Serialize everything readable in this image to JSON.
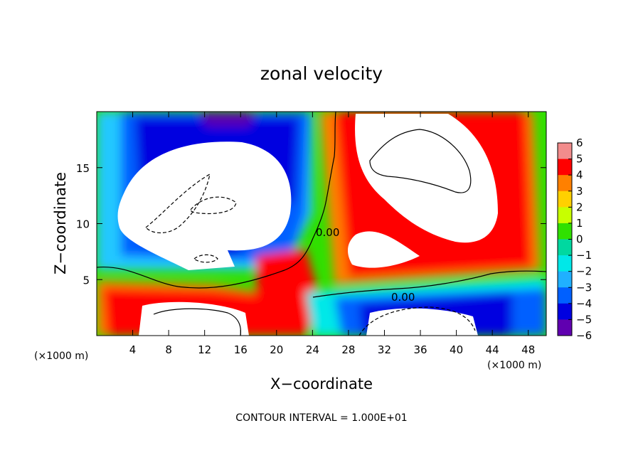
{
  "chart_data": {
    "type": "heatmap",
    "title": "zonal velocity",
    "xlabel": "X−coordinate",
    "ylabel": "Z−coordinate",
    "x_unit_left": "(×1000 m)",
    "x_unit_right": "(×1000 m)",
    "xlim": [
      0,
      50
    ],
    "ylim": [
      0,
      20
    ],
    "x_ticks": [
      4,
      8,
      12,
      16,
      20,
      24,
      28,
      32,
      36,
      40,
      44,
      48
    ],
    "x_tick_labels": [
      "4",
      "8",
      "12",
      "16",
      "20",
      "24",
      "28",
      "32",
      "36",
      "40",
      "44",
      "48"
    ],
    "y_ticks": [
      5,
      10,
      15
    ],
    "y_tick_labels": [
      "5",
      "10",
      "15"
    ],
    "colorbar": {
      "min": -6,
      "max": 6,
      "labels": [
        "6",
        "5",
        "4",
        "3",
        "2",
        "1",
        "0",
        "−1",
        "−2",
        "−3",
        "−4",
        "−5",
        "−6"
      ],
      "label_values": [
        6,
        5,
        4,
        3,
        2,
        1,
        0,
        -1,
        -2,
        -3,
        -4,
        -5,
        -6
      ],
      "colors": [
        "#f28c8c",
        "#ff0000",
        "#ff8000",
        "#ffd000",
        "#c8ff00",
        "#30e000",
        "#00d8a0",
        "#00e8e8",
        "#20b0ff",
        "#0060ff",
        "#0000e0",
        "#6000b0"
      ]
    },
    "contour_labels": [
      {
        "text": "0.00",
        "x": 25.0,
        "z": 9.0
      },
      {
        "text": "0.00",
        "x": 34.5,
        "z": 3.5
      }
    ],
    "features": [
      {
        "region": "upper-left",
        "sign": "negative",
        "peak": -6,
        "x_range": [
          4,
          26
        ],
        "z_range": [
          4,
          20
        ]
      },
      {
        "region": "left-center interior",
        "sign": "negative",
        "saturated_below": -6,
        "x_range": [
          6,
          20
        ],
        "z_range": [
          6,
          16
        ]
      },
      {
        "region": "right",
        "sign": "positive",
        "peak": 6,
        "x_range": [
          24,
          48
        ],
        "z_range": [
          4,
          20
        ]
      },
      {
        "region": "right interior",
        "sign": "positive",
        "saturated_above": 6,
        "x_range": [
          28,
          44
        ],
        "z_range": [
          6,
          20
        ]
      },
      {
        "region": "lower-left",
        "sign": "positive",
        "peak": 5,
        "x_range": [
          0,
          26
        ],
        "z_range": [
          0,
          5
        ]
      },
      {
        "region": "lower-right",
        "sign": "negative",
        "peak": -6,
        "x_range": [
          28,
          50
        ],
        "z_range": [
          0,
          4
        ]
      }
    ]
  },
  "footer": {
    "contour_interval": "CONTOUR INTERVAL = 1.000E+01"
  }
}
